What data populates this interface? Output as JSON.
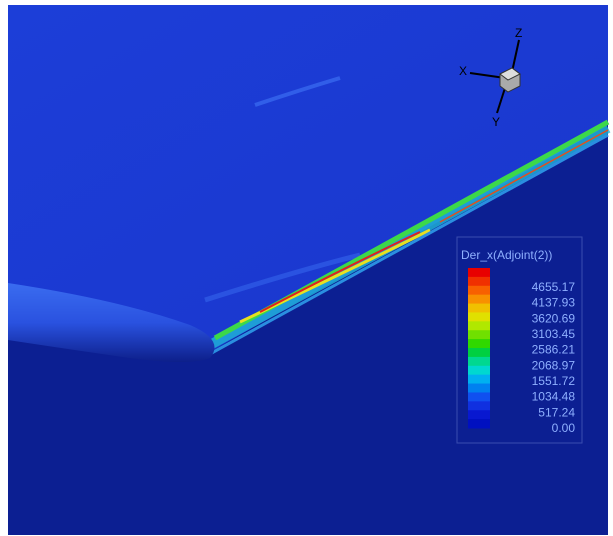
{
  "axes": {
    "x": "X",
    "y": "Y",
    "z": "Z"
  },
  "legend": {
    "title": "Der_x(Adjoint(2))",
    "levels": [
      "4655.17",
      "4137.93",
      "3620.69",
      "3103.45",
      "2586.21",
      "2068.97",
      "1551.72",
      "1034.48",
      "517.24",
      "0.00"
    ]
  }
}
